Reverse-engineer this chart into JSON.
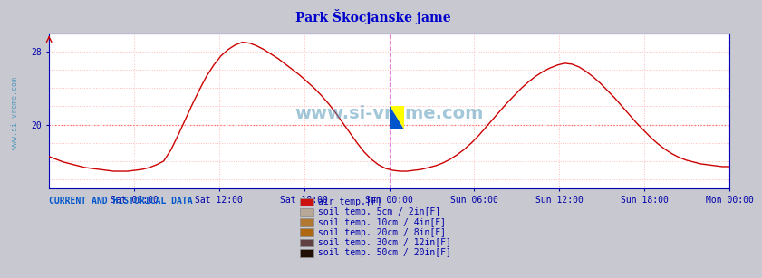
{
  "title": "Park Škocjanske jame",
  "title_color": "#0000cc",
  "title_fontsize": 10,
  "outer_background": "#c8c8d0",
  "plot_background": "#ffffff",
  "below_background": "#d0d0d8",
  "grid_color_v": "#ffbbbb",
  "grid_color_h": "#ffbbbb",
  "hline_color": "#ff6666",
  "hline_y": 20.0,
  "vline_color": "#dd88dd",
  "vline_x": 0.5,
  "right_arrow_color": "#cc0000",
  "air_temp_color": "#cc0000",
  "air_temp_linewidth": 1.0,
  "ylim_min": 13,
  "ylim_max": 30,
  "ytick_vals": [
    20,
    28
  ],
  "tick_labels": [
    "Sat 06:00",
    "Sat 12:00",
    "Sat 18:00",
    "Sun 00:00",
    "Sun 06:00",
    "Sun 12:00",
    "Sun 18:00",
    "Mon 00:00"
  ],
  "tick_positions_norm": [
    0.125,
    0.25,
    0.375,
    0.5,
    0.625,
    0.75,
    0.875,
    1.0
  ],
  "left_watermark": "www.si-vreme.com",
  "center_watermark": "www.si-vreme.com",
  "watermark_color": "#5599bb",
  "bottom_label": "CURRENT AND HISTORICAL DATA",
  "bottom_label_color": "#0055cc",
  "legend_items": [
    {
      "label": "air temp.[F]",
      "color": "#cc1111"
    },
    {
      "label": "soil temp. 5cm / 2in[F]",
      "color": "#b8a898"
    },
    {
      "label": "soil temp. 10cm / 4in[F]",
      "color": "#b07830"
    },
    {
      "label": "soil temp. 20cm / 8in[F]",
      "color": "#b06810"
    },
    {
      "label": "soil temp. 30cm / 12in[F]",
      "color": "#604040"
    },
    {
      "label": "soil temp. 50cm / 20in[F]",
      "color": "#201008"
    }
  ],
  "air_temp_data": [
    16.5,
    16.2,
    15.9,
    15.7,
    15.5,
    15.3,
    15.2,
    15.1,
    15.0,
    14.9,
    14.9,
    14.9,
    15.0,
    15.1,
    15.3,
    15.6,
    16.0,
    17.2,
    18.8,
    20.5,
    22.2,
    23.8,
    25.3,
    26.5,
    27.5,
    28.2,
    28.7,
    29.0,
    28.9,
    28.6,
    28.2,
    27.7,
    27.2,
    26.6,
    26.0,
    25.4,
    24.7,
    24.0,
    23.2,
    22.3,
    21.3,
    20.2,
    19.1,
    18.0,
    17.0,
    16.2,
    15.6,
    15.2,
    15.0,
    14.9,
    14.9,
    15.0,
    15.1,
    15.3,
    15.5,
    15.8,
    16.2,
    16.7,
    17.3,
    18.0,
    18.8,
    19.7,
    20.6,
    21.5,
    22.4,
    23.2,
    24.0,
    24.7,
    25.3,
    25.8,
    26.2,
    26.5,
    26.7,
    26.6,
    26.3,
    25.8,
    25.2,
    24.5,
    23.7,
    22.9,
    22.0,
    21.1,
    20.2,
    19.4,
    18.6,
    17.9,
    17.3,
    16.8,
    16.4,
    16.1,
    15.9,
    15.7,
    15.6,
    15.5,
    15.4,
    15.4
  ],
  "n_points": 96
}
